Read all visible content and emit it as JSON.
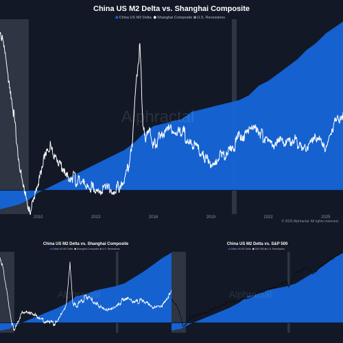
{
  "chart_data": [
    {
      "type": "area",
      "title": "China US M2 Delta vs. Shanghai Composite",
      "legend": [
        "China US M2 Delta",
        "Shanghai Composite",
        "U.S. Recessions"
      ],
      "legend_position": "top-center",
      "x_tick_labels": [
        "2010",
        "2013",
        "2016",
        "2019",
        "2022",
        "2025"
      ],
      "x_range": [
        2008.0,
        2025.9
      ],
      "recessions": [
        [
          2008.0,
          2009.5
        ],
        [
          2020.1,
          2020.35
        ]
      ],
      "series": [
        {
          "name": "China US M2 Delta",
          "color": "#1565d8",
          "x": [
            2008.0,
            2008.5,
            2009.0,
            2009.5,
            2010.0,
            2010.5,
            2011.0,
            2011.5,
            2012.0,
            2012.5,
            2013.0,
            2013.5,
            2014.0,
            2014.5,
            2015.0,
            2015.5,
            2016.0,
            2016.5,
            2017.0,
            2017.5,
            2018.0,
            2018.5,
            2019.0,
            2019.5,
            2020.0,
            2020.5,
            2021.0,
            2021.5,
            2022.0,
            2022.5,
            2023.0,
            2023.5,
            2024.0,
            2024.5,
            2025.0,
            2025.9
          ],
          "y": [
            -0.4,
            -0.35,
            -0.3,
            -0.2,
            -0.05,
            0.05,
            0.15,
            0.25,
            0.35,
            0.45,
            0.55,
            0.65,
            0.75,
            0.85,
            1.0,
            1.2,
            1.35,
            1.4,
            1.45,
            1.5,
            1.65,
            1.7,
            1.75,
            1.8,
            1.85,
            1.9,
            2.0,
            2.2,
            2.3,
            2.45,
            2.6,
            2.75,
            2.95,
            3.1,
            3.3,
            3.55
          ]
        },
        {
          "name": "Shanghai Composite",
          "color": "#ffffff",
          "x": [
            2008.0,
            2008.3,
            2008.6,
            2008.9,
            2009.2,
            2009.5,
            2009.8,
            2010.2,
            2010.6,
            2011.0,
            2011.5,
            2012.0,
            2012.5,
            2013.0,
            2013.5,
            2014.0,
            2014.5,
            2014.9,
            2015.1,
            2015.3,
            2015.45,
            2015.6,
            2015.8,
            2016.0,
            2016.5,
            2017.0,
            2017.5,
            2018.0,
            2018.5,
            2019.0,
            2019.5,
            2020.0,
            2020.5,
            2021.0,
            2021.5,
            2022.0,
            2022.5,
            2023.0,
            2023.5,
            2024.0,
            2024.5,
            2025.0,
            2025.5,
            2025.9
          ],
          "y": [
            3.4,
            2.8,
            2.0,
            0.9,
            0.1,
            -0.45,
            -0.1,
            0.5,
            0.9,
            0.6,
            0.3,
            0.2,
            0.1,
            0.0,
            0.05,
            0.0,
            0.25,
            0.9,
            2.2,
            3.0,
            1.5,
            1.0,
            1.3,
            0.9,
            1.2,
            1.3,
            1.25,
            1.0,
            0.75,
            0.55,
            0.75,
            0.8,
            1.15,
            1.25,
            1.2,
            1.05,
            0.95,
            1.1,
            1.05,
            0.85,
            1.1,
            0.95,
            1.4,
            1.6
          ]
        }
      ]
    },
    {
      "type": "area",
      "title": "China US M2 Delta vs. Shanghai Composite",
      "legend": [
        "China US M2 Delta",
        "Shanghai Composite",
        "U.S. Recessions"
      ],
      "legend_position": "top-center",
      "x_range": [
        2008.0,
        2025.9
      ],
      "recessions": [
        [
          2008.0,
          2009.5
        ],
        [
          2020.1,
          2020.35
        ]
      ],
      "series": [
        {
          "name": "China US M2 Delta",
          "color": "#1565d8",
          "x": [
            2008.0,
            2009.0,
            2010.0,
            2011.0,
            2012.0,
            2013.0,
            2014.0,
            2015.0,
            2016.0,
            2017.0,
            2018.0,
            2019.0,
            2020.0,
            2021.0,
            2022.0,
            2023.0,
            2024.0,
            2025.0,
            2025.9
          ],
          "y": [
            -0.4,
            -0.3,
            -0.05,
            0.15,
            0.35,
            0.55,
            0.75,
            1.0,
            1.35,
            1.45,
            1.65,
            1.75,
            1.85,
            2.0,
            2.3,
            2.6,
            2.95,
            3.3,
            3.55
          ]
        },
        {
          "name": "Shanghai Composite",
          "color": "#ffffff",
          "x": [
            2008.0,
            2008.6,
            2009.2,
            2009.5,
            2010.2,
            2011.0,
            2012.0,
            2013.0,
            2014.0,
            2014.9,
            2015.3,
            2015.6,
            2016.0,
            2017.0,
            2018.0,
            2019.0,
            2020.0,
            2021.0,
            2022.0,
            2023.0,
            2024.0,
            2025.0,
            2025.9
          ],
          "y": [
            3.4,
            2.0,
            0.1,
            -0.45,
            0.5,
            0.6,
            0.2,
            0.0,
            0.0,
            0.9,
            3.0,
            1.0,
            0.9,
            1.3,
            1.0,
            0.55,
            0.8,
            1.25,
            1.05,
            1.1,
            0.85,
            0.95,
            1.6
          ]
        }
      ]
    },
    {
      "type": "area",
      "title": "China US M2 Delta vs. S&P 500",
      "legend": [
        "China US M2 Delta",
        "S&P 500",
        "U.S. Recessions"
      ],
      "legend_position": "top-center",
      "x_range": [
        2008.0,
        2025.9
      ],
      "recessions": [
        [
          2008.0,
          2009.5
        ],
        [
          2020.1,
          2020.35
        ]
      ],
      "series": [
        {
          "name": "China US M2 Delta",
          "color": "#1565d8",
          "x": [
            2008.0,
            2009.0,
            2010.0,
            2011.0,
            2012.0,
            2013.0,
            2014.0,
            2015.0,
            2016.0,
            2017.0,
            2018.0,
            2019.0,
            2020.0,
            2021.0,
            2022.0,
            2023.0,
            2024.0,
            2025.0,
            2025.9
          ],
          "y": [
            -0.4,
            -0.3,
            -0.05,
            0.15,
            0.35,
            0.55,
            0.75,
            1.0,
            1.35,
            1.45,
            1.65,
            1.75,
            1.85,
            2.0,
            2.3,
            2.6,
            2.95,
            3.3,
            3.55
          ]
        },
        {
          "name": "S&P 500",
          "color": "#0d0d0d",
          "x": [
            2008.0,
            2008.5,
            2009.0,
            2009.2,
            2009.6,
            2010.0,
            2011.0,
            2012.0,
            2013.0,
            2014.0,
            2015.0,
            2016.0,
            2017.0,
            2018.0,
            2019.0,
            2020.0,
            2020.2,
            2020.6,
            2021.0,
            2022.0,
            2022.8,
            2023.5,
            2024.0,
            2025.0,
            2025.9
          ],
          "y": [
            1.2,
            0.9,
            0.3,
            -0.2,
            0.0,
            0.3,
            0.45,
            0.6,
            0.85,
            1.05,
            1.15,
            1.25,
            1.5,
            1.65,
            1.85,
            2.1,
            1.8,
            2.2,
            2.5,
            2.8,
            2.5,
            2.8,
            3.05,
            3.3,
            3.6
          ]
        }
      ]
    }
  ],
  "watermark": "Alphractal",
  "copyright": "© 2025 Alphractal. All rights reserved."
}
